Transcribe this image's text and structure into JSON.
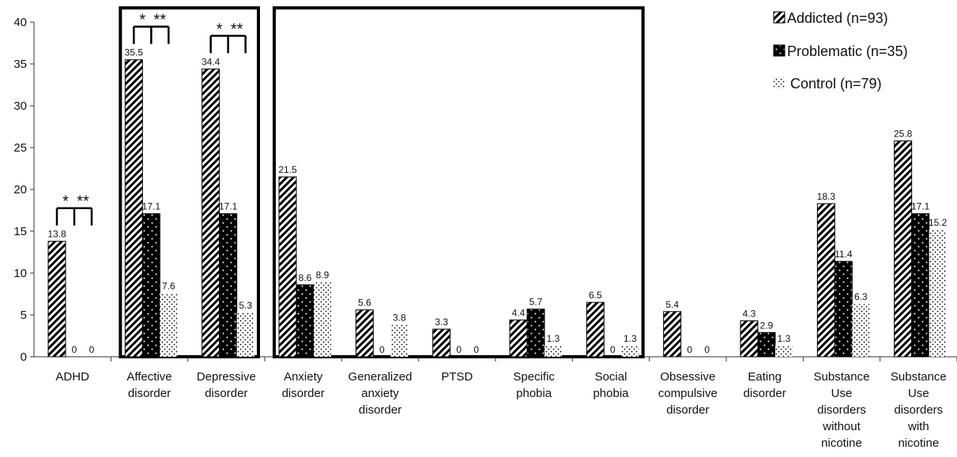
{
  "chart_data": {
    "type": "bar",
    "categories": [
      [
        "ADHD"
      ],
      [
        "Affective",
        "disorder"
      ],
      [
        "Depressive",
        "disorder"
      ],
      [
        "Anxiety",
        "disorder"
      ],
      [
        "Generalized",
        "anxiety",
        "disorder"
      ],
      [
        "PTSD"
      ],
      [
        "Specific",
        "phobia"
      ],
      [
        "Social",
        "phobia"
      ],
      [
        "Obsessive",
        "compulsive",
        "disorder"
      ],
      [
        "Eating",
        "disorder"
      ],
      [
        "Substance",
        "Use",
        "disorders",
        "without",
        "nicotine"
      ],
      [
        "Substance",
        "Use",
        "disorders",
        "with",
        "nicotine"
      ]
    ],
    "series": [
      {
        "name": "Addicted (n=93)",
        "pattern": "diagonal-stripes",
        "values": [
          13.8,
          35.5,
          34.4,
          21.5,
          5.6,
          3.3,
          4.4,
          6.5,
          5.4,
          4.3,
          18.3,
          25.8
        ]
      },
      {
        "name": "Problematic (n=35)",
        "pattern": "black-dotted",
        "values": [
          0,
          17.1,
          17.1,
          8.6,
          0,
          0,
          5.7,
          0,
          0,
          2.9,
          11.4,
          17.1
        ]
      },
      {
        "name": "Control (n=79)",
        "pattern": "white-dotted",
        "values": [
          0,
          7.6,
          5.3,
          8.9,
          3.8,
          0,
          1.3,
          1.3,
          0,
          1.3,
          6.3,
          15.2
        ]
      }
    ],
    "data_labels": [
      [
        "13.8",
        "0",
        "0"
      ],
      [
        "35.5",
        "17.1",
        "7.6"
      ],
      [
        "34.4",
        "17.1",
        "5.3"
      ],
      [
        "21.5",
        "8.6",
        "8.9"
      ],
      [
        "5.6",
        "0",
        "3.8"
      ],
      [
        "3.3",
        "0",
        "0"
      ],
      [
        "4.4",
        "5.7",
        "1.3"
      ],
      [
        "6.5",
        "0",
        "1.3"
      ],
      [
        "5.4",
        "0",
        "0"
      ],
      [
        "4.3",
        "2.9",
        "1.3"
      ],
      [
        "18.3",
        "11.4",
        "6.3"
      ],
      [
        "25.8",
        "17.1",
        "15.2"
      ]
    ],
    "yticks": [
      "0",
      "5",
      "10",
      "15",
      "20",
      "25",
      "30",
      "35",
      "40"
    ],
    "ylim": [
      0,
      40
    ],
    "grid": false,
    "legend_position": "top-right",
    "significance": [
      {
        "category_index": 0,
        "stars": [
          "*",
          "**"
        ]
      },
      {
        "category_index": 1,
        "stars": [
          "*",
          "**"
        ]
      },
      {
        "category_index": 2,
        "stars": [
          "*",
          "**"
        ]
      }
    ],
    "highlight_boxes": [
      {
        "from_category": 1,
        "to_category": 2
      },
      {
        "from_category": 3,
        "to_category": 7
      }
    ]
  }
}
